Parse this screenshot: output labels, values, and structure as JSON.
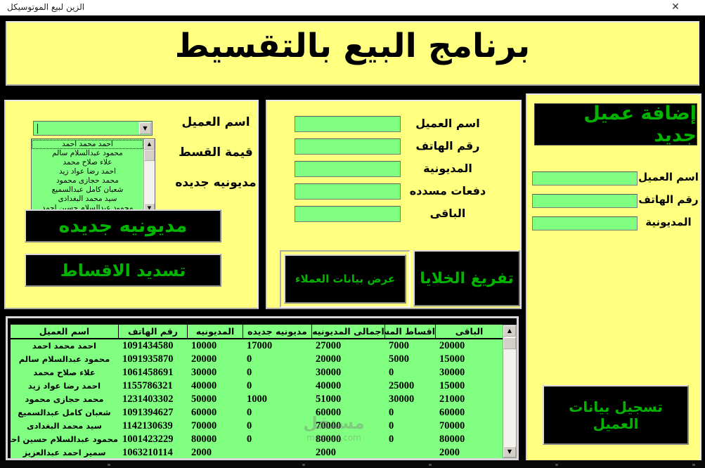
{
  "window": {
    "title": "الزين لبيع الموتوسيكل",
    "close_glyph": "✕"
  },
  "header": {
    "title": "برنامج البيع بالتقسيط"
  },
  "icons": {
    "down_arrow": "▼",
    "up_arrow": "▲"
  },
  "left_panel": {
    "labels": {
      "customer_name": "اسم العميل",
      "installment_value": "قيمة القسط",
      "new_debt": "مديونيه جديده"
    },
    "combo_value": "",
    "list_items": [
      "احمد محمد احمد",
      "محمود عبدالسلام سالم",
      "علاء صلاح محمد",
      "احمد رضا عواد زيد",
      "محمد حجازى محمود",
      "شعبان كامل عبدالسميع",
      "سيد محمد البغدادى",
      "محمود عبدالسلام حسين احمد"
    ],
    "buttons": {
      "new_debt": "مديونيه جديده",
      "pay_installments": "تسديد الاقساط"
    }
  },
  "middle_panel": {
    "fields": [
      "اسم العميل",
      "رقم الهاتف",
      "المديونية",
      "دفعات مسدده",
      "الباقى"
    ],
    "values": [
      "",
      "",
      "",
      "",
      ""
    ],
    "buttons": {
      "show_customers": "عرض بيانات العملاء",
      "clear_cells": "تفريغ الخلايا"
    }
  },
  "right_panel": {
    "title": "إضافة عميل جديد",
    "fields": [
      "اسم العميل",
      "رقم الهاتف",
      "المديونية"
    ],
    "values": [
      "",
      "",
      ""
    ],
    "register_button": "تسجيل بيانات العميل"
  },
  "table": {
    "columns": [
      "اسم العميل",
      "رقم الهاتف",
      "المديونيه",
      "مديونيه جديده",
      "اجمالى المديونيه",
      "اقساط المسدده",
      "الباقى"
    ],
    "rows": [
      [
        "احمد محمد احمد",
        "1091434580",
        "10000",
        "17000",
        "27000",
        "7000",
        "20000"
      ],
      [
        "محمود عبدالسلام سالم",
        "1091935870",
        "20000",
        "0",
        "20000",
        "5000",
        "15000"
      ],
      [
        "علاء صلاح محمد",
        "1061458691",
        "30000",
        "0",
        "30000",
        "0",
        "30000"
      ],
      [
        "احمد رضا عواد زيد",
        "1155786321",
        "40000",
        "0",
        "40000",
        "25000",
        "15000"
      ],
      [
        "محمد حجازى محمود",
        "1231403302",
        "50000",
        "1000",
        "51000",
        "30000",
        "21000"
      ],
      [
        "شعبان كامل عبدالسميع",
        "1091394627",
        "60000",
        "0",
        "60000",
        "0",
        "60000"
      ],
      [
        "سيد محمد البغدادى",
        "1142130639",
        "70000",
        "0",
        "70000",
        "0",
        "70000"
      ],
      [
        "محمود عبدالسلام حسين احمد",
        "1001423229",
        "80000",
        "0",
        "80000",
        "0",
        "80000"
      ],
      [
        "سمير احمد عبدالعزيز",
        "1063210114",
        "2000",
        "",
        "2000",
        "",
        "2000"
      ]
    ]
  },
  "watermark": {
    "line1": "مستقل",
    "line2": "mostaql.com"
  },
  "colors": {
    "panel_yellow": "#ffff80",
    "input_green": "#80ff80",
    "button_text_green": "#00b400",
    "form_background": "#000000",
    "titlebar_background": "#ffffff"
  }
}
